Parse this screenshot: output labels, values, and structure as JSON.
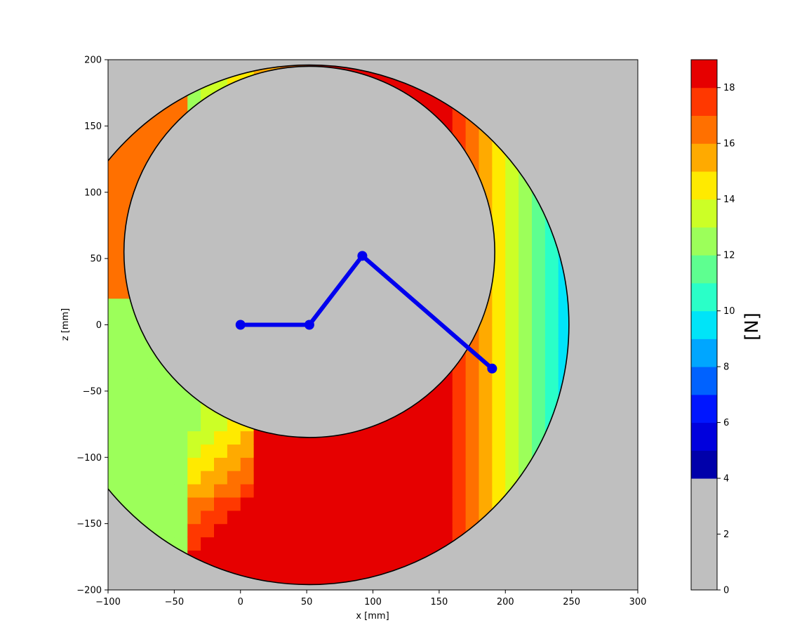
{
  "chart_data": {
    "type": "heatmap",
    "title": "",
    "xlabel": "x [mm]",
    "ylabel": "z [mm]",
    "xlim": [
      -100,
      300
    ],
    "ylim": [
      -200,
      200
    ],
    "xticks": [
      -100,
      -50,
      0,
      50,
      100,
      150,
      200,
      250,
      300
    ],
    "yticks": [
      -200,
      -150,
      -100,
      -50,
      0,
      50,
      100,
      150,
      200
    ],
    "colorbar": {
      "label": "[N]",
      "range": [
        0,
        19
      ],
      "ticks": [
        0,
        2,
        4,
        6,
        8,
        10,
        12,
        14,
        16,
        18
      ],
      "levels": [
        {
          "from": 0,
          "to": 4,
          "color": "#bfbfbf"
        },
        {
          "from": 4,
          "to": 5,
          "color": "#0000aa"
        },
        {
          "from": 5,
          "to": 6,
          "color": "#0000dd"
        },
        {
          "from": 6,
          "to": 7,
          "color": "#0016ff"
        },
        {
          "from": 7,
          "to": 8,
          "color": "#0062ff"
        },
        {
          "from": 8,
          "to": 9,
          "color": "#00a6ff"
        },
        {
          "from": 9,
          "to": 10,
          "color": "#00e4f8"
        },
        {
          "from": 10,
          "to": 11,
          "color": "#2affc8"
        },
        {
          "from": 11,
          "to": 12,
          "color": "#5eff90"
        },
        {
          "from": 12,
          "to": 13,
          "color": "#9cff5a"
        },
        {
          "from": 13,
          "to": 14,
          "color": "#ccff26"
        },
        {
          "from": 14,
          "to": 15,
          "color": "#ffea00"
        },
        {
          "from": 15,
          "to": 16,
          "color": "#ffaa00"
        },
        {
          "from": 16,
          "to": 17,
          "color": "#ff7000"
        },
        {
          "from": 17,
          "to": 18,
          "color": "#ff3800"
        },
        {
          "from": 18,
          "to": 19,
          "color": "#e60000"
        }
      ]
    },
    "background_value": "0-4",
    "arm_links": {
      "color": "#0000ee",
      "joints": [
        [
          0,
          0
        ],
        [
          52,
          0
        ],
        [
          92,
          52
        ],
        [
          190,
          -33
        ]
      ]
    },
    "workspace_boundary": {
      "outer": {
        "center": [
          52,
          0
        ],
        "radius": 196
      },
      "inner": {
        "center": [
          52,
          55
        ],
        "radius": 140
      }
    },
    "force_regions": [
      {
        "value": 18.5,
        "note": "bottom band and upper-right ridge"
      },
      {
        "value": 12.5,
        "note": "left lobe"
      },
      {
        "value": 9.5,
        "note": "outer right rim"
      }
    ]
  }
}
